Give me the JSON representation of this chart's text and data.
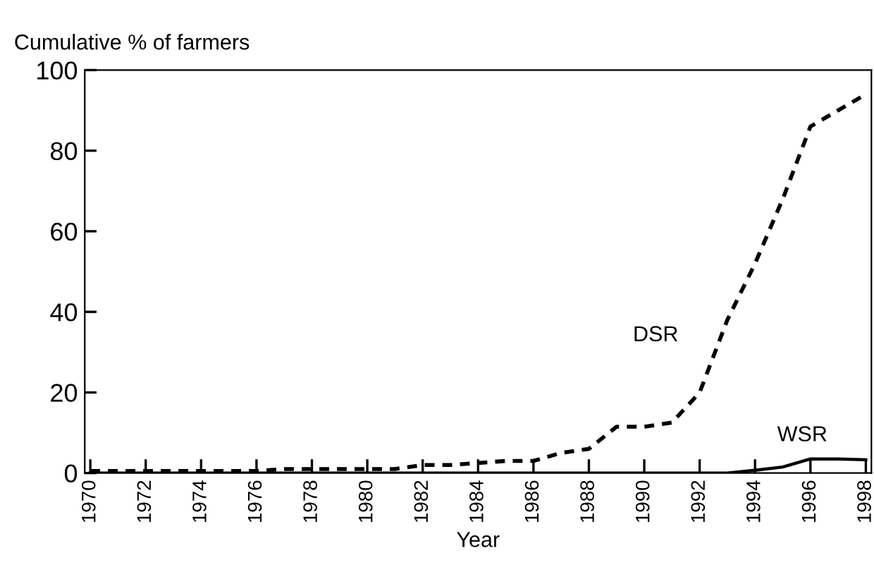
{
  "chart_data": {
    "type": "line",
    "ylabel": "Cumulative % of farmers",
    "xlabel": "Year",
    "x": [
      1970,
      1971,
      1972,
      1973,
      1974,
      1975,
      1976,
      1977,
      1978,
      1979,
      1980,
      1981,
      1982,
      1983,
      1984,
      1985,
      1986,
      1987,
      1988,
      1989,
      1990,
      1991,
      1992,
      1993,
      1994,
      1995,
      1996,
      1997,
      1998
    ],
    "series": [
      {
        "name": "DSR",
        "color": "#000000",
        "line_style": "dashed",
        "values": [
          0.5,
          0.5,
          0.5,
          0.5,
          0.5,
          0.5,
          0.5,
          1,
          1,
          1,
          1,
          1,
          2,
          2,
          2.5,
          3,
          3,
          5,
          6,
          11.5,
          11.5,
          12.5,
          20,
          38,
          52,
          68,
          86,
          90,
          94
        ]
      },
      {
        "name": "WSR",
        "color": "#000000",
        "line_style": "solid",
        "values": [
          0,
          0,
          0,
          0,
          0,
          0,
          0,
          0,
          0,
          0,
          0,
          0,
          0,
          0,
          0,
          0,
          0,
          0,
          0,
          0,
          0,
          0,
          0,
          0,
          0.7,
          1.5,
          3.5,
          3.5,
          3.3
        ]
      }
    ],
    "xlim": [
      1969.8,
      1998.2
    ],
    "xticks": [
      1970,
      1972,
      1974,
      1976,
      1978,
      1980,
      1982,
      1984,
      1986,
      1988,
      1990,
      1992,
      1994,
      1996,
      1998
    ],
    "ylim": [
      0,
      100
    ],
    "yticks": [
      0,
      20,
      40,
      60,
      80,
      100
    ],
    "grid": false,
    "legend": false
  }
}
